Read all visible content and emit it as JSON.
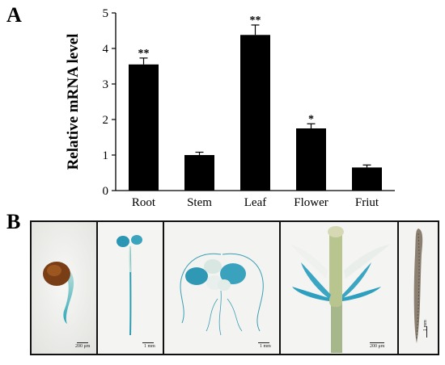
{
  "panel_labels": {
    "a": "A",
    "b": "B"
  },
  "chart_data": {
    "type": "bar",
    "categories": [
      "Root",
      "Stem",
      "Leaf",
      "Flower",
      "Friut"
    ],
    "values": [
      3.55,
      1.0,
      4.38,
      1.75,
      0.65
    ],
    "errors": [
      0.18,
      0.08,
      0.28,
      0.13,
      0.07
    ],
    "significance": [
      "**",
      "",
      "**",
      "*",
      ""
    ],
    "ylabel": "Relative mRNA level",
    "ylim": [
      0,
      5
    ],
    "yticks": [
      "0",
      "1",
      "2",
      "3",
      "4",
      "5"
    ],
    "bar_color": "#000000",
    "grid": false
  },
  "photos": [
    {
      "scale_bar": "200 μm"
    },
    {
      "scale_bar": "1 mm"
    },
    {
      "scale_bar": "1 mm"
    },
    {
      "scale_bar": "200 μm"
    },
    {
      "scale_bar": "1 mm"
    }
  ]
}
